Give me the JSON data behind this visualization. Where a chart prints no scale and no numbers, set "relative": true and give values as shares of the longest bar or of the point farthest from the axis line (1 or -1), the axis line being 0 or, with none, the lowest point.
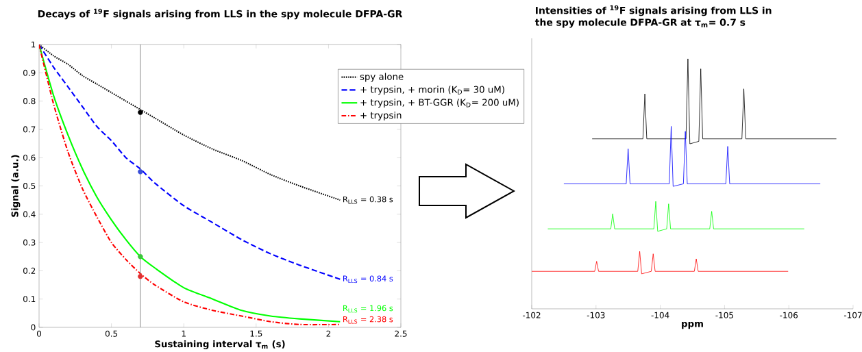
{
  "chart_data": [
    {
      "type": "line",
      "title": "Decays of $^{19}$F signals arising from LLS in the spy molecule DFPA-GR",
      "xlabel": "Sustaining interval τ$_{m}$ (s)",
      "ylabel": "Signal (a.u.)",
      "xlim": [
        0,
        2.5
      ],
      "ylim": [
        0,
        1
      ],
      "xticks": [
        0,
        0.5,
        1,
        1.5,
        2,
        2.5
      ],
      "yticks": [
        0,
        0.1,
        0.2,
        0.3,
        0.4,
        0.5,
        0.6,
        0.7,
        0.8,
        0.9,
        1
      ],
      "legend": "right",
      "x": [
        0,
        0.1,
        0.2,
        0.3,
        0.4,
        0.5,
        0.6,
        0.7,
        0.8,
        1.0,
        1.2,
        1.4,
        1.6,
        1.8,
        2.08
      ],
      "series": [
        {
          "name": "spy alone",
          "color": "#000000",
          "line_style": "dotted",
          "values": [
            1,
            0.96,
            0.93,
            0.89,
            0.86,
            0.83,
            0.8,
            0.77,
            0.74,
            0.68,
            0.63,
            0.59,
            0.54,
            0.5,
            0.45
          ]
        },
        {
          "name": "+ trypsin, + morin  (K$_{D}$= 30 uM)",
          "color": "#0000ff",
          "line_style": "dashed",
          "values": [
            1,
            0.92,
            0.85,
            0.78,
            0.71,
            0.66,
            0.6,
            0.56,
            0.51,
            0.43,
            0.37,
            0.31,
            0.26,
            0.22,
            0.17
          ]
        },
        {
          "name": "+ trypsin, + BT-GGR  (K$_{D}$= 200 uM)",
          "color": "#00ff00",
          "line_style": "solid",
          "values": [
            1,
            0.82,
            0.68,
            0.56,
            0.46,
            0.38,
            0.31,
            0.25,
            0.21,
            0.14,
            0.1,
            0.06,
            0.04,
            0.03,
            0.02
          ]
        },
        {
          "name": "+ trypsin",
          "color": "#ff0000",
          "line_style": "dashdot",
          "values": [
            1,
            0.79,
            0.62,
            0.49,
            0.39,
            0.3,
            0.24,
            0.19,
            0.15,
            0.09,
            0.06,
            0.04,
            0.02,
            0.01,
            0.01
          ]
        },
        {
          "type": "scatter",
          "color": "#000000",
          "x": [
            0.7
          ],
          "values": [
            0.76
          ]
        },
        {
          "type": "scatter",
          "color": "#3a4fd8",
          "x": [
            0.7
          ],
          "values": [
            0.55
          ]
        },
        {
          "type": "scatter",
          "color": "#3cc63c",
          "x": [
            0.7
          ],
          "values": [
            0.25
          ]
        },
        {
          "type": "scatter",
          "color": "#e03030",
          "x": [
            0.7
          ],
          "values": [
            0.18
          ]
        }
      ],
      "ref_lines": [
        {
          "axis": "x",
          "value": 0.7,
          "color": "#808080"
        }
      ],
      "annotations": [
        "R$_{LLS}$ = 0.38 s",
        "R$_{LLS}$ = 0.84 s",
        "R$_{LLS}$ = 1.96 s",
        "R$_{LLS}$ = 2.38 s"
      ]
    },
    {
      "type": "line",
      "relative": true,
      "title": "Intensities of $^{19}$F signals arising from LLS in the spy molecule DFPA-GR at τ$_{m}$= 0.7 s",
      "xlabel": "ppm",
      "xlim": [
        -102,
        -107
      ],
      "xticks": [
        -102,
        -103,
        -104,
        -105,
        -106,
        -107
      ],
      "tick_labels": "x",
      "series": [
        {
          "color": "#000000",
          "x": [
            -102.94,
            -103.73,
            -103.76,
            -103.79,
            -104.4,
            -104.43,
            -104.46,
            -104.6,
            -104.63,
            -104.66,
            -105.27,
            -105.3,
            -105.33,
            -106.74
          ],
          "values": [
            0.68,
            0.68,
            0.86,
            0.68,
            0.68,
            1.0,
            0.66,
            0.67,
            0.96,
            0.68,
            0.68,
            0.88,
            0.68,
            0.68
          ]
        },
        {
          "color": "#0000ff",
          "x": [
            -102.5,
            -103.47,
            -103.5,
            -103.53,
            -104.14,
            -104.17,
            -104.2,
            -104.36,
            -104.39,
            -104.42,
            -105.02,
            -105.05,
            -105.08,
            -106.49
          ],
          "values": [
            0.5,
            0.5,
            0.64,
            0.5,
            0.5,
            0.73,
            0.49,
            0.5,
            0.71,
            0.5,
            0.5,
            0.65,
            0.5,
            0.5
          ]
        },
        {
          "color": "#00ff00",
          "x": [
            -102.25,
            -103.23,
            -103.26,
            -103.29,
            -103.9,
            -103.93,
            -103.96,
            -104.1,
            -104.13,
            -104.16,
            -104.77,
            -104.8,
            -104.83,
            -106.24
          ],
          "values": [
            0.32,
            0.32,
            0.38,
            0.32,
            0.32,
            0.43,
            0.31,
            0.32,
            0.42,
            0.32,
            0.32,
            0.39,
            0.32,
            0.32
          ]
        },
        {
          "color": "#ff0000",
          "x": [
            -102.0,
            -102.98,
            -103.01,
            -103.04,
            -103.65,
            -103.68,
            -103.71,
            -103.86,
            -103.89,
            -103.92,
            -104.53,
            -104.56,
            -104.59,
            -105.99
          ],
          "values": [
            0.15,
            0.15,
            0.19,
            0.15,
            0.15,
            0.23,
            0.14,
            0.15,
            0.22,
            0.15,
            0.15,
            0.2,
            0.15,
            0.15
          ]
        }
      ]
    }
  ]
}
